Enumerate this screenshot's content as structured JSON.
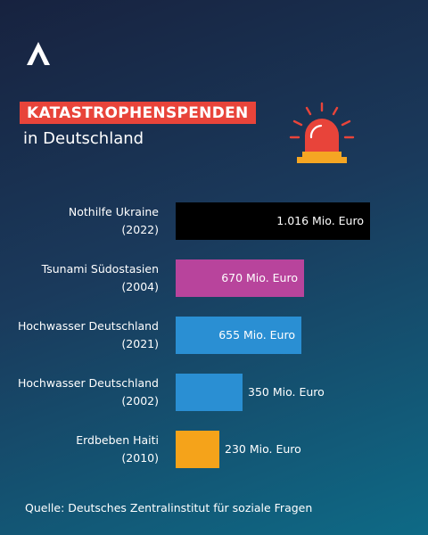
{
  "header": {
    "title": "KATASTROPHENSPENDEN",
    "subtitle": "in Deutschland"
  },
  "icons": {
    "logo": "logo-a-icon",
    "siren": "siren-icon"
  },
  "colors": {
    "title_bg": "#e8443a",
    "siren": "#e8443a",
    "siren_base": "#f5a623"
  },
  "chart_data": {
    "type": "bar",
    "orientation": "horizontal",
    "unit": "Mio. Euro",
    "max_value": 1016,
    "categories": [
      {
        "name": "Nothilfe Ukraine",
        "year": "(2022)"
      },
      {
        "name": "Tsunami Südostasien",
        "year": "(2004)"
      },
      {
        "name": "Hochwasser Deutschland",
        "year": "(2021)"
      },
      {
        "name": "Hochwasser Deutschland",
        "year": "(2002)"
      },
      {
        "name": "Erdbeben Haiti",
        "year": "(2010)"
      }
    ],
    "values": [
      1016,
      670,
      655,
      350,
      230
    ],
    "value_labels": [
      "1.016 Mio. Euro",
      "670 Mio. Euro",
      "655 Mio. Euro",
      "350 Mio. Euro",
      "230 Mio. Euro"
    ],
    "label_inside": [
      true,
      true,
      true,
      false,
      false
    ],
    "colors": [
      "#000000",
      "#b8449c",
      "#2a8fd3",
      "#2a8fd3",
      "#f5a31a"
    ]
  },
  "footer": {
    "source": "Quelle: Deutsches Zentralinstitut für soziale Fragen"
  }
}
